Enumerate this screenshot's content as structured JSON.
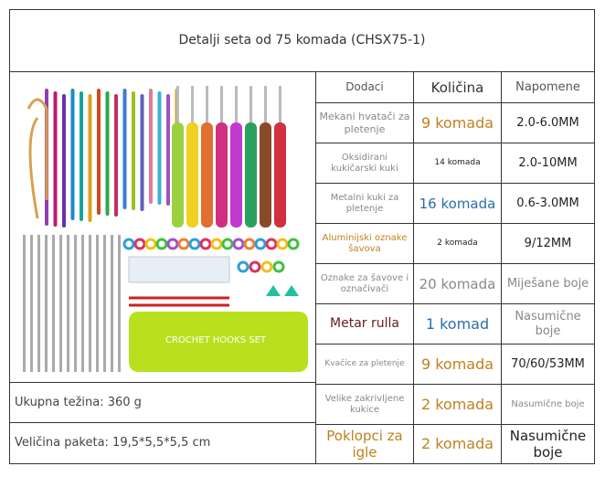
{
  "title": "Detalji seta od 75 komada (CHSX75-1)",
  "image": {
    "bag_label": "CROCHET HOOKS SET"
  },
  "left_rows": [
    "Ukupna težina: 360 g",
    "Veličina paketa: 19,5*5,5*5,5 cm"
  ],
  "table": {
    "header": [
      "Dodaci",
      "Količina",
      "Napomene"
    ],
    "rows": [
      [
        "Mekani hvatači za pletenje",
        "9 komada",
        "2.0-6.0MM"
      ],
      [
        "Oksidirani kukičarski kuki",
        "14 komada",
        "2.0-10MM"
      ],
      [
        "Metalni kuki za pletenje",
        "16 komada",
        "0.6-3.0MM"
      ],
      [
        "Aluminijski oznake šavova",
        "2 komada",
        "9/12MM"
      ],
      [
        "Oznake za šavove i označivači",
        "20 komada",
        "Miješane boje"
      ],
      [
        "Metar rulla",
        "1 komad",
        "Nasumične boje"
      ],
      [
        "Kvačice za pletenje",
        "9 komada",
        "70/60/53MM"
      ],
      [
        "Velike zakrivljene kukice",
        "2 komada",
        "Nasumične boje"
      ],
      [
        "Poklopci za igle",
        "2 komada",
        "Nasumične boje"
      ]
    ]
  }
}
